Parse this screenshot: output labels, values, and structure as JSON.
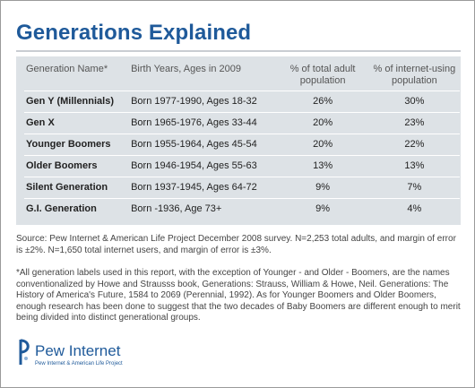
{
  "title": "Generations Explained",
  "table": {
    "headers": [
      "Generation Name*",
      "Birth Years, Ages in 2009",
      "% of total adult population",
      "% of internet-using population"
    ],
    "rows": [
      [
        "Gen Y (Millennials)",
        "Born 1977-1990, Ages 18-32",
        "26%",
        "30%"
      ],
      [
        "Gen X",
        "Born 1965-1976, Ages 33-44",
        "20%",
        "23%"
      ],
      [
        "Younger Boomers",
        "Born 1955-1964, Ages 45-54",
        "20%",
        "22%"
      ],
      [
        "Older Boomers",
        "Born 1946-1954, Ages 55-63",
        "13%",
        "13%"
      ],
      [
        "Silent Generation",
        "Born 1937-1945, Ages 64-72",
        "9%",
        "7%"
      ],
      [
        "G.I. Generation",
        "Born  -1936, Age 73+",
        "9%",
        "4%"
      ]
    ]
  },
  "source": "Source: Pew Internet & American Life Project December 2008 survey. N=2,253 total adults, and margin of error is ±2%. N=1,650 total internet users, and margin of error is ±3%.",
  "note": "*All generation labels used in this report, with the exception of Younger - and Older - Boomers, are the names conventionalized by Howe and Strausss book, Generations: Strauss, William & Howe, Neil. Generations: The History of America's Future, 1584 to 2069 (Perennial, 1992). As for Younger Boomers and Older Boomers, enough research has been done to suggest that the two decades of Baby Boomers are different enough to merit being divided into distinct generational groups.",
  "logo": {
    "name": "Pew Internet",
    "subtitle": "Pew Internet & American Life Project",
    "icon": "pew-logo-icon",
    "color": "#1f5a9a"
  },
  "colors": {
    "title": "#1f5a9a",
    "table_background": "#dde2e6",
    "row_divider": "#ffffff"
  }
}
